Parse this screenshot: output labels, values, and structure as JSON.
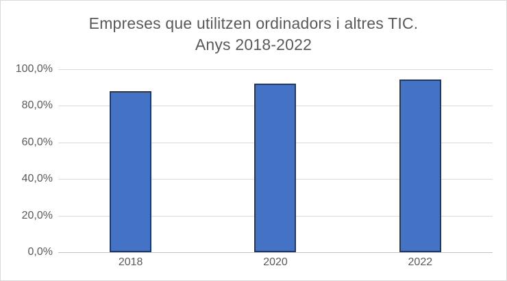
{
  "chart": {
    "title_line1": "Empreses que utilitzen ordinadors i altres TIC.",
    "title_line2": "Anys 2018-2022"
  },
  "chart_data": {
    "type": "bar",
    "title": "Empreses que utilitzen ordinadors i altres TIC. Anys 2018-2022",
    "categories": [
      "2018",
      "2020",
      "2022"
    ],
    "values": [
      88,
      92,
      94.5
    ],
    "xlabel": "",
    "ylabel": "",
    "ylim": [
      0,
      100
    ],
    "yticks": [
      {
        "value": 0,
        "label": "0,0%"
      },
      {
        "value": 20,
        "label": "20,0%"
      },
      {
        "value": 40,
        "label": "40,0%"
      },
      {
        "value": 60,
        "label": "60,0%"
      },
      {
        "value": 80,
        "label": "80,0%"
      },
      {
        "value": 100,
        "label": "100,0%"
      }
    ],
    "grid": true,
    "legend": false,
    "colors": {
      "bar_fill": "#4472C4",
      "bar_border": "#1F3864",
      "gridline": "#D9D9D9",
      "axis_line": "#BFBFBF",
      "axis_text": "#595959",
      "title_text": "#595959",
      "background": "#FFFFFF",
      "frame_border": "#D9D9D9"
    }
  }
}
